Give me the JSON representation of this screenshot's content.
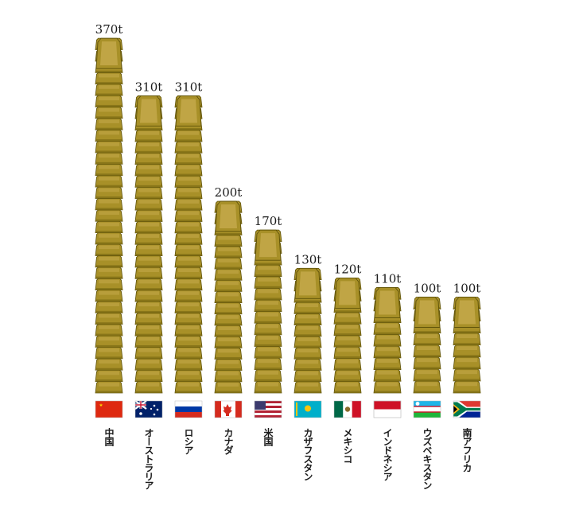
{
  "chart_data": {
    "type": "bar",
    "title": "",
    "xlabel": "",
    "ylabel": "",
    "unit": "t",
    "categories": [
      "中国",
      "オーストラリア",
      "ロシア",
      "カナダ",
      "米国",
      "カザフスタン",
      "メキシコ",
      "インドネシア",
      "ウズベキスタン",
      "南アフリカ"
    ],
    "values": [
      370,
      310,
      310,
      200,
      170,
      130,
      120,
      110,
      100,
      100
    ],
    "value_labels": [
      "370t",
      "310t",
      "310t",
      "200t",
      "170t",
      "130t",
      "120t",
      "110t",
      "100t",
      "100t"
    ],
    "flags": [
      "china-flag",
      "australia-flag",
      "russia-flag",
      "canada-flag",
      "usa-flag",
      "kazakhstan-flag",
      "mexico-flag",
      "indonesia-flag",
      "uzbekistan-flag",
      "south-africa-flag"
    ],
    "grid": false,
    "legend": "none",
    "colors": {
      "gold_light": "#c4a94a",
      "gold_mid": "#a89028",
      "gold_dark": "#7c6b12",
      "outline": "#5e5209"
    }
  }
}
